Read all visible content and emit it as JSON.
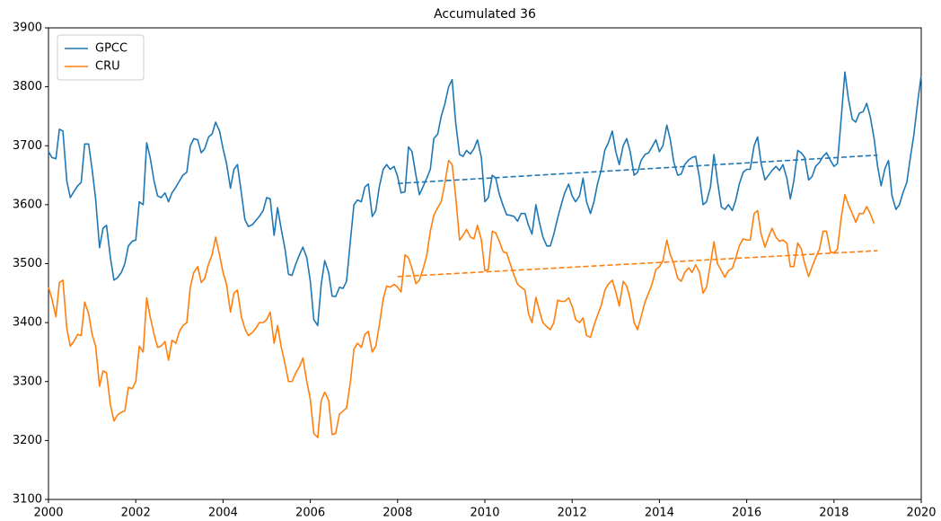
{
  "chart_data": {
    "type": "line",
    "title": "Accumulated 36",
    "x": [
      2000,
      2000.08,
      2000.17,
      2000.25,
      2000.33,
      2000.42,
      2000.5,
      2000.58,
      2000.67,
      2000.75,
      2000.83,
      2000.92,
      2001,
      2001.08,
      2001.17,
      2001.25,
      2001.33,
      2001.42,
      2001.5,
      2001.58,
      2001.67,
      2001.75,
      2001.83,
      2001.92,
      2002,
      2002.08,
      2002.17,
      2002.25,
      2002.33,
      2002.42,
      2002.5,
      2002.58,
      2002.67,
      2002.75,
      2002.83,
      2002.92,
      2003,
      2003.08,
      2003.17,
      2003.25,
      2003.33,
      2003.42,
      2003.5,
      2003.58,
      2003.67,
      2003.75,
      2003.83,
      2003.92,
      2004,
      2004.08,
      2004.17,
      2004.25,
      2004.33,
      2004.42,
      2004.5,
      2004.58,
      2004.67,
      2004.75,
      2004.83,
      2004.92,
      2005,
      2005.08,
      2005.17,
      2005.25,
      2005.33,
      2005.42,
      2005.5,
      2005.58,
      2005.67,
      2005.75,
      2005.83,
      2005.92,
      2006,
      2006.08,
      2006.17,
      2006.25,
      2006.33,
      2006.42,
      2006.5,
      2006.58,
      2006.67,
      2006.75,
      2006.83,
      2006.92,
      2007,
      2007.08,
      2007.17,
      2007.25,
      2007.33,
      2007.42,
      2007.5,
      2007.58,
      2007.67,
      2007.75,
      2007.83,
      2007.92,
      2008,
      2008.08,
      2008.17,
      2008.25,
      2008.33,
      2008.42,
      2008.5,
      2008.58,
      2008.67,
      2008.75,
      2008.83,
      2008.92,
      2009,
      2009.08,
      2009.17,
      2009.25,
      2009.33,
      2009.42,
      2009.5,
      2009.58,
      2009.67,
      2009.75,
      2009.83,
      2009.92,
      2010,
      2010.08,
      2010.17,
      2010.25,
      2010.33,
      2010.42,
      2010.5,
      2010.58,
      2010.67,
      2010.75,
      2010.83,
      2010.92,
      2011,
      2011.08,
      2011.17,
      2011.25,
      2011.33,
      2011.42,
      2011.5,
      2011.58,
      2011.67,
      2011.75,
      2011.83,
      2011.92,
      2012,
      2012.08,
      2012.17,
      2012.25,
      2012.33,
      2012.42,
      2012.5,
      2012.58,
      2012.67,
      2012.75,
      2012.83,
      2012.92,
      2013,
      2013.08,
      2013.17,
      2013.25,
      2013.33,
      2013.42,
      2013.5,
      2013.58,
      2013.67,
      2013.75,
      2013.83,
      2013.92,
      2014,
      2014.08,
      2014.17,
      2014.25,
      2014.33,
      2014.42,
      2014.5,
      2014.58,
      2014.67,
      2014.75,
      2014.83,
      2014.92,
      2015,
      2015.08,
      2015.17,
      2015.25,
      2015.33,
      2015.42,
      2015.5,
      2015.58,
      2015.67,
      2015.75,
      2015.83,
      2015.92,
      2016,
      2016.08,
      2016.17,
      2016.25,
      2016.33,
      2016.42,
      2016.5,
      2016.58,
      2016.67,
      2016.75,
      2016.83,
      2016.92,
      2017,
      2017.08,
      2017.17,
      2017.25,
      2017.33,
      2017.42,
      2017.5,
      2017.58,
      2017.67,
      2017.75,
      2017.83,
      2017.92,
      2018,
      2018.08,
      2018.17,
      2018.25,
      2018.33,
      2018.42,
      2018.5,
      2018.58,
      2018.67,
      2018.75,
      2018.83,
      2018.92,
      2019,
      2019.08,
      2019.17,
      2019.25,
      2019.33,
      2019.42,
      2019.5,
      2019.58,
      2019.67,
      2019.75,
      2019.83,
      2019.92,
      2020
    ],
    "series": [
      {
        "name": "GPCC",
        "color": "#1f77b4",
        "values": [
          3690,
          3680,
          3678,
          3728,
          3725,
          3640,
          3612,
          3622,
          3632,
          3638,
          3703,
          3703,
          3660,
          3610,
          3527,
          3560,
          3565,
          3510,
          3472,
          3476,
          3485,
          3500,
          3530,
          3538,
          3540,
          3605,
          3600,
          3705,
          3680,
          3640,
          3615,
          3612,
          3620,
          3605,
          3620,
          3630,
          3640,
          3650,
          3655,
          3700,
          3712,
          3710,
          3688,
          3695,
          3715,
          3720,
          3740,
          3725,
          3695,
          3670,
          3628,
          3660,
          3668,
          3620,
          3575,
          3563,
          3566,
          3573,
          3580,
          3590,
          3612,
          3610,
          3548,
          3595,
          3560,
          3525,
          3482,
          3480,
          3500,
          3515,
          3528,
          3510,
          3470,
          3405,
          3395,
          3465,
          3505,
          3485,
          3445,
          3444,
          3460,
          3458,
          3470,
          3540,
          3600,
          3608,
          3605,
          3630,
          3635,
          3580,
          3590,
          3630,
          3660,
          3668,
          3660,
          3665,
          3648,
          3620,
          3622,
          3698,
          3690,
          3650,
          3617,
          3630,
          3645,
          3660,
          3712,
          3720,
          3750,
          3770,
          3800,
          3812,
          3740,
          3685,
          3682,
          3692,
          3686,
          3695,
          3710,
          3680,
          3605,
          3612,
          3650,
          3645,
          3618,
          3598,
          3583,
          3582,
          3580,
          3572,
          3585,
          3585,
          3565,
          3550,
          3600,
          3570,
          3545,
          3530,
          3530,
          3550,
          3578,
          3600,
          3620,
          3635,
          3615,
          3605,
          3615,
          3645,
          3605,
          3585,
          3605,
          3635,
          3660,
          3693,
          3705,
          3725,
          3690,
          3668,
          3700,
          3712,
          3690,
          3650,
          3655,
          3675,
          3685,
          3688,
          3698,
          3710,
          3690,
          3700,
          3735,
          3710,
          3672,
          3650,
          3652,
          3668,
          3676,
          3680,
          3682,
          3645,
          3600,
          3605,
          3630,
          3685,
          3640,
          3596,
          3592,
          3600,
          3590,
          3608,
          3635,
          3655,
          3660,
          3660,
          3700,
          3715,
          3670,
          3642,
          3650,
          3658,
          3665,
          3658,
          3668,
          3645,
          3610,
          3640,
          3692,
          3688,
          3680,
          3642,
          3648,
          3665,
          3672,
          3682,
          3688,
          3675,
          3665,
          3670,
          3750,
          3825,
          3780,
          3745,
          3740,
          3755,
          3758,
          3772,
          3750,
          3712,
          3665,
          3632,
          3662,
          3675,
          3615,
          3592,
          3600,
          3620,
          3638,
          3680,
          3718,
          3775,
          3820
        ]
      },
      {
        "name": "CRU",
        "color": "#ff7f0e",
        "values": [
          3460,
          3440,
          3410,
          3468,
          3472,
          3390,
          3360,
          3368,
          3380,
          3378,
          3435,
          3415,
          3380,
          3360,
          3292,
          3318,
          3315,
          3260,
          3233,
          3243,
          3248,
          3250,
          3290,
          3288,
          3300,
          3360,
          3350,
          3442,
          3410,
          3380,
          3358,
          3360,
          3368,
          3336,
          3370,
          3365,
          3385,
          3395,
          3400,
          3460,
          3485,
          3495,
          3468,
          3475,
          3500,
          3515,
          3545,
          3515,
          3485,
          3465,
          3418,
          3450,
          3455,
          3410,
          3390,
          3378,
          3383,
          3390,
          3400,
          3400,
          3405,
          3418,
          3365,
          3395,
          3360,
          3330,
          3300,
          3300,
          3315,
          3325,
          3340,
          3300,
          3270,
          3212,
          3205,
          3268,
          3282,
          3268,
          3210,
          3212,
          3245,
          3250,
          3255,
          3300,
          3355,
          3365,
          3358,
          3380,
          3385,
          3350,
          3360,
          3395,
          3440,
          3462,
          3460,
          3465,
          3460,
          3452,
          3515,
          3510,
          3492,
          3466,
          3472,
          3490,
          3515,
          3555,
          3582,
          3595,
          3605,
          3635,
          3675,
          3668,
          3615,
          3540,
          3548,
          3558,
          3545,
          3542,
          3565,
          3540,
          3488,
          3490,
          3555,
          3552,
          3538,
          3520,
          3518,
          3500,
          3480,
          3465,
          3460,
          3455,
          3415,
          3400,
          3443,
          3420,
          3400,
          3393,
          3388,
          3400,
          3438,
          3436,
          3436,
          3442,
          3428,
          3405,
          3400,
          3408,
          3378,
          3375,
          3395,
          3412,
          3430,
          3455,
          3465,
          3472,
          3452,
          3428,
          3470,
          3462,
          3440,
          3400,
          3388,
          3410,
          3435,
          3450,
          3465,
          3490,
          3495,
          3505,
          3540,
          3515,
          3500,
          3475,
          3470,
          3485,
          3493,
          3485,
          3498,
          3485,
          3450,
          3460,
          3500,
          3537,
          3500,
          3488,
          3477,
          3488,
          3492,
          3510,
          3530,
          3542,
          3540,
          3540,
          3585,
          3590,
          3550,
          3528,
          3545,
          3560,
          3545,
          3538,
          3540,
          3535,
          3495,
          3495,
          3535,
          3525,
          3500,
          3478,
          3495,
          3510,
          3525,
          3555,
          3555,
          3520,
          3518,
          3525,
          3580,
          3617,
          3600,
          3585,
          3570,
          3585,
          3585,
          3597,
          3585,
          3568,
          null,
          null,
          null,
          null,
          null,
          null,
          null,
          null,
          null,
          null,
          null,
          null,
          null
        ]
      }
    ],
    "trends": [
      {
        "color": "#1f77b4",
        "x": [
          2008,
          2019
        ],
        "values": [
          3636,
          3684
        ]
      },
      {
        "color": "#ff7f0e",
        "x": [
          2008,
          2019
        ],
        "values": [
          3478,
          3522
        ]
      }
    ],
    "xlim": [
      2000,
      2020
    ],
    "xticks": [
      2000,
      2002,
      2004,
      2006,
      2008,
      2010,
      2012,
      2014,
      2016,
      2018,
      2020
    ],
    "ylim": [
      3100,
      3900
    ],
    "yticks": [
      3100,
      3200,
      3300,
      3400,
      3500,
      3600,
      3700,
      3800,
      3900
    ],
    "legend": "upper left"
  }
}
